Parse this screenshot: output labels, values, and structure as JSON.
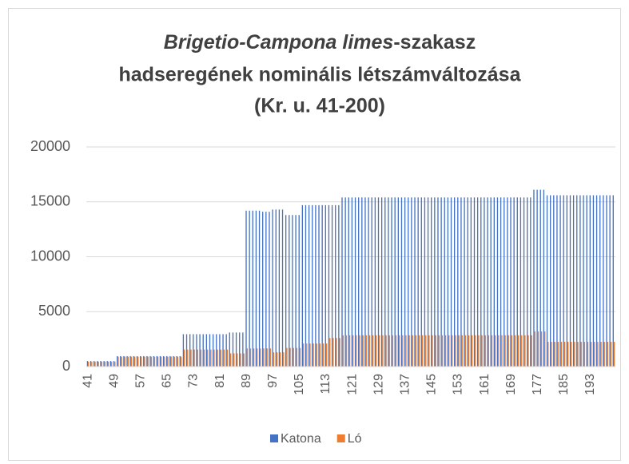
{
  "chart_data": {
    "type": "bar",
    "title": [
      [
        "Brigetio-Campona limes",
        "-szakasz"
      ],
      "hadseregének nominális létszámváltozása",
      "(Kr. u. 41-200)"
    ],
    "categories": [
      "41",
      null,
      null,
      null,
      null,
      null,
      null,
      null,
      "49",
      null,
      null,
      null,
      null,
      null,
      null,
      null,
      "57",
      null,
      null,
      null,
      null,
      null,
      null,
      null,
      "65",
      null,
      null,
      null,
      null,
      null,
      null,
      null,
      "73",
      null,
      null,
      null,
      null,
      null,
      null,
      null,
      "81",
      null,
      null,
      null,
      null,
      null,
      null,
      null,
      "89",
      null,
      null,
      null,
      null,
      null,
      null,
      null,
      "97",
      null,
      null,
      null,
      null,
      null,
      null,
      null,
      "105",
      null,
      null,
      null,
      null,
      null,
      null,
      null,
      "113",
      null,
      null,
      null,
      null,
      null,
      null,
      null,
      "121",
      null,
      null,
      null,
      null,
      null,
      null,
      null,
      "129",
      null,
      null,
      null,
      null,
      null,
      null,
      null,
      "137",
      null,
      null,
      null,
      null,
      null,
      null,
      null,
      "145",
      null,
      null,
      null,
      null,
      null,
      null,
      null,
      "153",
      null,
      null,
      null,
      null,
      null,
      null,
      null,
      "161",
      null,
      null,
      null,
      null,
      null,
      null,
      null,
      "169",
      null,
      null,
      null,
      null,
      null,
      null,
      null,
      "177",
      null,
      null,
      null,
      null,
      null,
      null,
      null,
      "185",
      null,
      null,
      null,
      null,
      null,
      null,
      null,
      "193",
      null,
      null,
      null,
      null,
      null,
      null,
      null
    ],
    "series": [
      {
        "name": "Katona",
        "color": "#4472c4",
        "values": [
          500,
          500,
          500,
          500,
          500,
          500,
          500,
          500,
          500,
          950,
          950,
          950,
          950,
          950,
          950,
          950,
          950,
          950,
          950,
          950,
          950,
          950,
          950,
          950,
          950,
          950,
          950,
          950,
          950,
          2950,
          2950,
          2950,
          2950,
          2950,
          2950,
          2950,
          2950,
          2950,
          2950,
          2950,
          2950,
          2950,
          2950,
          3100,
          3100,
          3100,
          3100,
          3100,
          14200,
          14200,
          14200,
          14200,
          14200,
          14100,
          14100,
          14100,
          14300,
          14300,
          14300,
          14300,
          13800,
          13800,
          13800,
          13800,
          13800,
          14700,
          14700,
          14700,
          14700,
          14700,
          14700,
          14700,
          14700,
          14700,
          14700,
          14700,
          14700,
          15400,
          15400,
          15400,
          15400,
          15400,
          15400,
          15400,
          15400,
          15400,
          15400,
          15400,
          15400,
          15400,
          15400,
          15400,
          15400,
          15400,
          15400,
          15400,
          15400,
          15400,
          15400,
          15400,
          15400,
          15400,
          15400,
          15400,
          15400,
          15400,
          15400,
          15400,
          15400,
          15400,
          15400,
          15400,
          15400,
          15400,
          15400,
          15400,
          15400,
          15400,
          15400,
          15400,
          15400,
          15400,
          15400,
          15400,
          15400,
          15400,
          15400,
          15400,
          15400,
          15400,
          15400,
          15400,
          15400,
          15400,
          15400,
          16100,
          16100,
          16100,
          16100,
          15600,
          15600,
          15600,
          15600,
          15600,
          15600,
          15600,
          15600,
          15600,
          15600,
          15600,
          15600,
          15600,
          15600,
          15600,
          15600,
          15600,
          15600,
          15600,
          15600,
          15600
        ]
      },
      {
        "name": "Ló",
        "color": "#ed7d31",
        "values": [
          450,
          450,
          450,
          450,
          450,
          450,
          450,
          450,
          450,
          900,
          900,
          900,
          900,
          900,
          900,
          900,
          900,
          900,
          900,
          900,
          900,
          900,
          900,
          900,
          900,
          900,
          900,
          900,
          900,
          1550,
          1550,
          1550,
          1550,
          1550,
          1550,
          1550,
          1550,
          1550,
          1550,
          1550,
          1550,
          1550,
          1550,
          1200,
          1200,
          1200,
          1200,
          1200,
          1650,
          1650,
          1650,
          1650,
          1650,
          1650,
          1650,
          1650,
          1300,
          1300,
          1300,
          1300,
          1700,
          1700,
          1700,
          1700,
          1700,
          2100,
          2100,
          2100,
          2100,
          2100,
          2100,
          2100,
          2100,
          2600,
          2600,
          2600,
          2600,
          2850,
          2850,
          2850,
          2850,
          2850,
          2850,
          2850,
          2850,
          2850,
          2850,
          2850,
          2850,
          2850,
          2850,
          2850,
          2850,
          2850,
          2850,
          2850,
          2850,
          2850,
          2850,
          2850,
          2850,
          2850,
          2850,
          2850,
          2850,
          2850,
          2850,
          2850,
          2850,
          2850,
          2850,
          2850,
          2850,
          2850,
          2850,
          2850,
          2850,
          2850,
          2850,
          2850,
          2850,
          2850,
          2850,
          2850,
          2850,
          2850,
          2850,
          2850,
          2850,
          2850,
          2850,
          2850,
          2850,
          2850,
          2850,
          3200,
          3200,
          3200,
          3200,
          2250,
          2250,
          2250,
          2250,
          2250,
          2250,
          2250,
          2250,
          2250,
          2250,
          2250,
          2250,
          2250,
          2250,
          2250,
          2250,
          2250,
          2250,
          2250,
          2250,
          2250
        ]
      }
    ],
    "ylim": [
      0,
      20000
    ],
    "yticks": [
      0,
      5000,
      10000,
      15000,
      20000
    ],
    "grid": true,
    "legend": "bottom"
  }
}
